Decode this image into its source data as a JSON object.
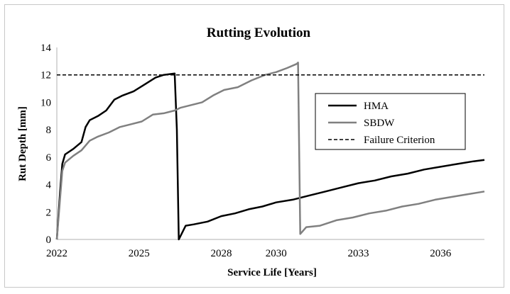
{
  "chart_data": {
    "type": "line",
    "title": "Rutting Evolution",
    "xlabel": "Service Life [Years]",
    "ylabel": "Rut Depth [mm]",
    "xlim": [
      2022,
      2037.6
    ],
    "ylim": [
      0,
      14
    ],
    "x_ticks": [
      2022,
      2025,
      2028,
      2030,
      2033,
      2036
    ],
    "x_tick_labels": [
      "2022",
      "2025",
      "2028",
      "2030",
      "2033",
      "2036"
    ],
    "y_ticks": [
      0,
      2,
      4,
      6,
      8,
      10,
      12,
      14
    ],
    "y_tick_labels": [
      "0",
      "2",
      "4",
      "6",
      "8",
      "10",
      "12",
      "14"
    ],
    "grid": false,
    "legend_position": "right",
    "series": [
      {
        "name": "HMA",
        "color": "#000000",
        "style": "solid",
        "x": [
          2022.0,
          2022.12,
          2022.2,
          2022.3,
          2022.6,
          2022.9,
          2023.05,
          2023.2,
          2023.5,
          2023.8,
          2024.1,
          2024.4,
          2024.8,
          2025.2,
          2025.6,
          2025.9,
          2026.3,
          2026.38,
          2026.45,
          2026.7,
          2027.0,
          2027.5,
          2028.0,
          2028.5,
          2029.0,
          2029.5,
          2030.0,
          2030.6,
          2031.2,
          2031.8,
          2032.4,
          2033.0,
          2033.6,
          2034.2,
          2034.8,
          2035.4,
          2036.0,
          2036.6,
          2037.2,
          2037.6
        ],
        "values": [
          0.0,
          3.5,
          5.5,
          6.2,
          6.6,
          7.1,
          8.2,
          8.7,
          9.0,
          9.4,
          10.2,
          10.5,
          10.8,
          11.3,
          11.8,
          12.0,
          12.1,
          8.0,
          0.0,
          1.0,
          1.1,
          1.3,
          1.7,
          1.9,
          2.2,
          2.4,
          2.7,
          2.9,
          3.2,
          3.5,
          3.8,
          4.1,
          4.3,
          4.6,
          4.8,
          5.1,
          5.3,
          5.5,
          5.7,
          5.8
        ]
      },
      {
        "name": "SBDW",
        "color": "#808080",
        "style": "solid",
        "x": [
          2022.0,
          2022.12,
          2022.2,
          2022.3,
          2022.6,
          2022.9,
          2023.2,
          2023.5,
          2023.9,
          2024.3,
          2024.7,
          2025.1,
          2025.5,
          2025.9,
          2026.3,
          2026.5,
          2026.9,
          2027.3,
          2027.7,
          2028.1,
          2028.6,
          2029.1,
          2029.6,
          2030.0,
          2030.4,
          2030.75,
          2030.8,
          2030.88,
          2031.1,
          2031.6,
          2032.2,
          2032.8,
          2033.4,
          2034.0,
          2034.6,
          2035.2,
          2035.8,
          2036.4,
          2037.0,
          2037.6
        ],
        "values": [
          0.0,
          3.0,
          5.0,
          5.6,
          6.1,
          6.5,
          7.2,
          7.5,
          7.8,
          8.2,
          8.4,
          8.6,
          9.1,
          9.2,
          9.4,
          9.6,
          9.8,
          10.0,
          10.5,
          10.9,
          11.1,
          11.6,
          12.0,
          12.2,
          12.5,
          12.8,
          12.9,
          0.4,
          0.9,
          1.0,
          1.4,
          1.6,
          1.9,
          2.1,
          2.4,
          2.6,
          2.9,
          3.1,
          3.3,
          3.5
        ]
      },
      {
        "name": "Failure Criterion",
        "color": "#000000",
        "style": "dashed",
        "x": [
          2022,
          2037.6
        ],
        "values": [
          12,
          12
        ]
      }
    ]
  }
}
